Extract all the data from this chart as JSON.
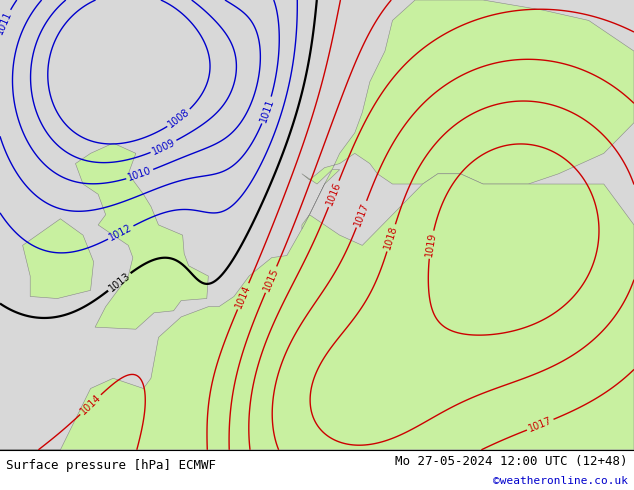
{
  "title_left": "Surface pressure [hPa] ECMWF",
  "title_right": "Mo 27-05-2024 12:00 UTC (12+48)",
  "credit": "©weatheronline.co.uk",
  "background_land_color": "#c8f0a0",
  "background_sea_color": "#d8d8d8",
  "contour_color_low": "#0000cc",
  "contour_color_mid": "#000000",
  "contour_color_high": "#cc0000",
  "label_fontsize": 7,
  "footer_fontsize": 9,
  "credit_color": "#0000cc",
  "fig_width": 6.34,
  "fig_height": 4.9,
  "dpi": 100
}
